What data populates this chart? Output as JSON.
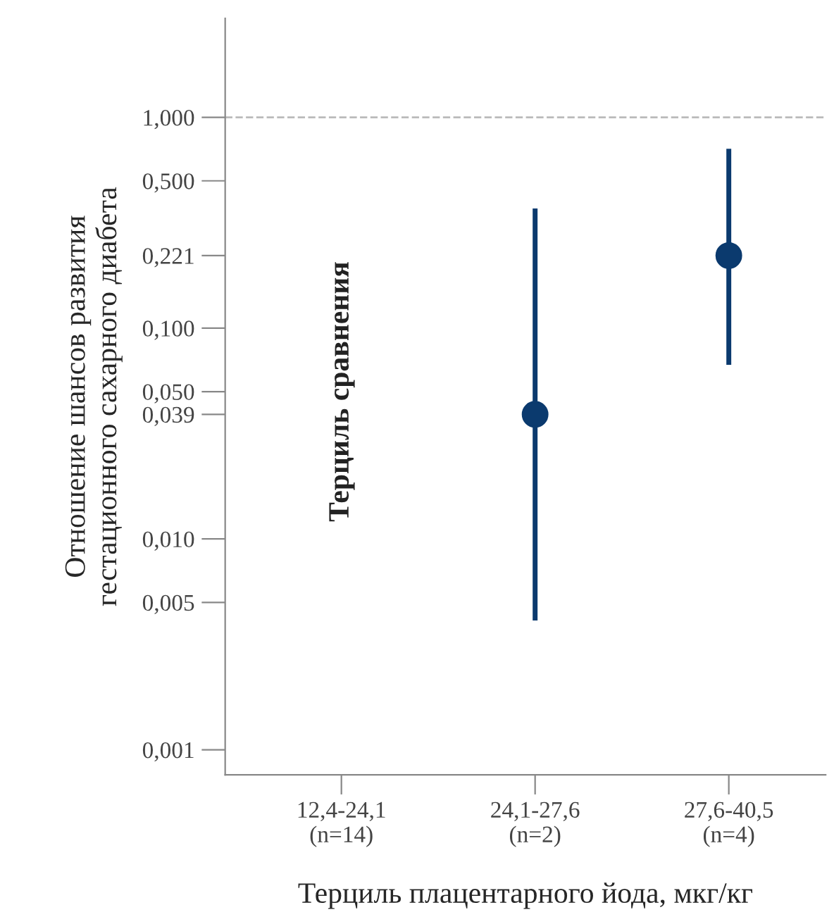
{
  "chart_data": {
    "type": "scatter",
    "xlabel": "Терциль плацентарного йода, мкг/кг",
    "ylabel": "Отношение шансов развития\nгестационного сахарного диабета",
    "categories": [
      "12,4-24,1\n(n=14)",
      "24,1-27,6\n(n=2)",
      "27,6-40,5\n(n=4)"
    ],
    "series": [
      {
        "color": "#0b3a6e",
        "values": [
          null,
          0.039,
          0.221
        ],
        "errors": [
          null,
          [
            0.0041,
            0.37
          ],
          [
            0.067,
            0.71
          ]
        ]
      }
    ],
    "log": "y",
    "ylim": [
      0.00076,
      2.95
    ],
    "yticks": [
      {
        "value": 0.001,
        "label": "0,001"
      },
      {
        "value": 0.005,
        "label": "0,005"
      },
      {
        "value": 0.01,
        "label": "0,010"
      },
      {
        "value": 0.039,
        "label": "0,039"
      },
      {
        "value": 0.05,
        "label": "0,050"
      },
      {
        "value": 0.1,
        "label": "0,100"
      },
      {
        "value": 0.221,
        "label": "0,221"
      },
      {
        "value": 0.5,
        "label": "0,500"
      },
      {
        "value": 1,
        "label": "1,000"
      }
    ],
    "ref_lines": [
      {
        "axis": "y",
        "value": 1,
        "color": "#bbbbbb",
        "line_style": "dashed"
      }
    ],
    "annotations": [
      "Терциль сравнения"
    ],
    "marker": "circle",
    "grid": false,
    "legend": false
  }
}
